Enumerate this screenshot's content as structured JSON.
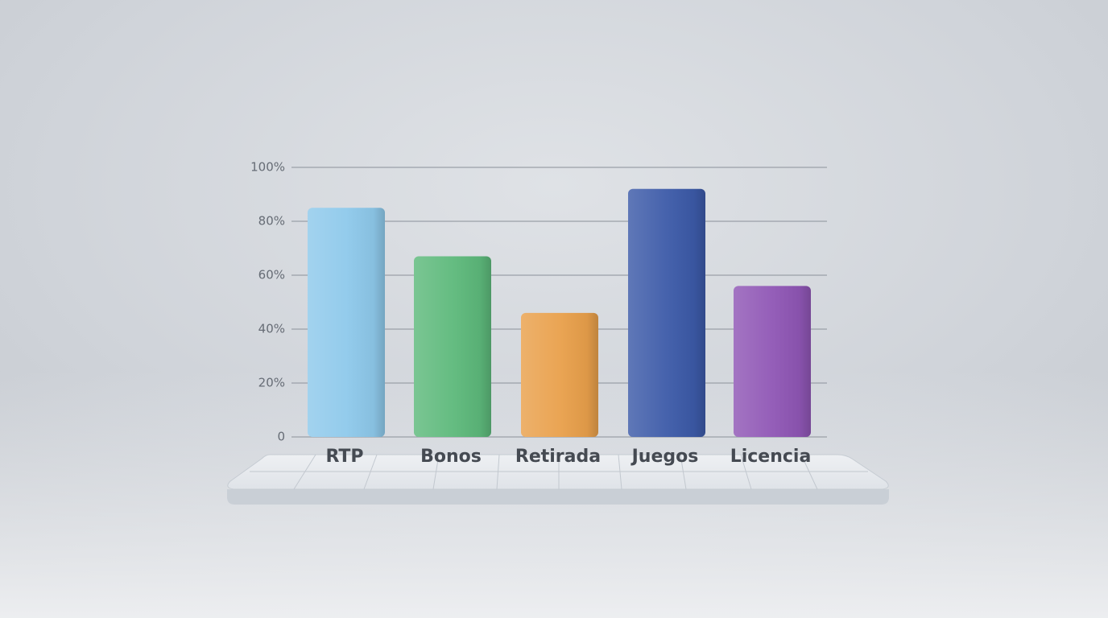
{
  "chart_data": {
    "type": "bar",
    "categories": [
      "RTP",
      "Bonos",
      "Retirada",
      "Juegos",
      "Licencia"
    ],
    "values": [
      85,
      67,
      46,
      92,
      56
    ],
    "colors": [
      "#8ec9eb",
      "#5db97b",
      "#e9a04b",
      "#3c5aa8",
      "#8f56b5"
    ],
    "ylim": [
      0,
      100
    ],
    "yticks": [
      0,
      {
        "value": 20,
        "label": "20%"
      },
      {
        "value": 40,
        "label": "40%"
      },
      {
        "value": 60,
        "label": "60%"
      },
      {
        "value": 80,
        "label": "80%"
      },
      {
        "value": 100,
        "label": "100%"
      }
    ],
    "grid": true
  }
}
